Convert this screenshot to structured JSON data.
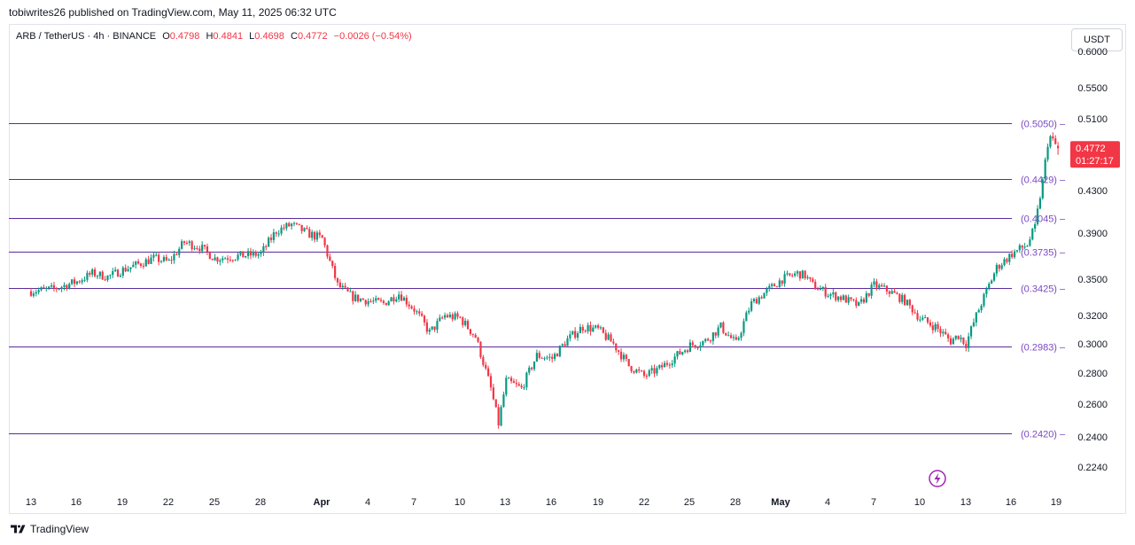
{
  "header": {
    "publish_line": "tobiwrites26 published on TradingView.com, May 11, 2025 06:32 UTC"
  },
  "legend": {
    "symbol": "ARB / TetherUS · 4h · BINANCE",
    "o_label": "O",
    "o_value": "0.4798",
    "h_label": "H",
    "h_value": "0.4841",
    "l_label": "L",
    "l_value": "0.4698",
    "c_label": "C",
    "c_value": "0.4772",
    "change": "−0.0026 (−0.54%)"
  },
  "currency_button": "USDT",
  "brand": {
    "name": "TradingView"
  },
  "colors": {
    "up": "#089981",
    "down": "#f23645",
    "level_line": "#5b2c9e",
    "level_label": "#7b49c2",
    "price_badge": "#f23645",
    "axis_text": "#131722"
  },
  "chart_data": {
    "type": "candlestick",
    "symbol": "ARB / TetherUS",
    "interval": "4h",
    "exchange": "BINANCE",
    "ylim": [
      0.215,
      0.583
    ],
    "y_ticks": [
      "0.2240",
      "0.2400",
      "0.2600",
      "0.2800",
      "0.3000",
      "0.3200",
      "0.3500",
      "0.3900",
      "0.4300",
      "0.5100",
      "0.5500"
    ],
    "y_tick_partial": "0.6000",
    "x_ticks": [
      "13",
      "16",
      "19",
      "22",
      "25",
      "28",
      "Apr",
      "4",
      "7",
      "10",
      "13",
      "16",
      "19",
      "22",
      "25",
      "28",
      "May",
      "4",
      "7",
      "10",
      "13",
      "16",
      "19"
    ],
    "levels": [
      {
        "label": "(0.5050)",
        "value": 0.505
      },
      {
        "label": "(0.4429)",
        "value": 0.4429
      },
      {
        "label": "(0.4045)",
        "value": 0.4045
      },
      {
        "label": "(0.3735)",
        "value": 0.3735
      },
      {
        "label": "(0.3425)",
        "value": 0.3425
      },
      {
        "label": "(0.2983)",
        "value": 0.2983
      },
      {
        "label": "(0.2420)",
        "value": 0.242
      }
    ],
    "last_price": "0.4772",
    "countdown": "01:27:17",
    "ohlc": {
      "open": 0.4798,
      "high": 0.4841,
      "low": 0.4698,
      "close": 0.4772
    },
    "waypoints_day_close": [
      [
        0,
        0.34
      ],
      [
        1.5,
        0.342
      ],
      [
        3,
        0.348
      ],
      [
        4,
        0.355
      ],
      [
        5,
        0.352
      ],
      [
        6,
        0.358
      ],
      [
        8,
        0.368
      ],
      [
        9,
        0.365
      ],
      [
        10,
        0.382
      ],
      [
        11,
        0.378
      ],
      [
        12,
        0.368
      ],
      [
        13.5,
        0.37
      ],
      [
        15,
        0.372
      ],
      [
        16,
        0.392
      ],
      [
        17,
        0.398
      ],
      [
        18,
        0.39
      ],
      [
        19,
        0.385
      ],
      [
        20,
        0.345
      ],
      [
        21,
        0.335
      ],
      [
        22,
        0.332
      ],
      [
        23,
        0.33
      ],
      [
        24,
        0.338
      ],
      [
        25,
        0.325
      ],
      [
        26,
        0.308
      ],
      [
        27,
        0.32
      ],
      [
        28,
        0.318
      ],
      [
        29,
        0.305
      ],
      [
        30,
        0.27
      ],
      [
        30.5,
        0.248
      ],
      [
        31,
        0.275
      ],
      [
        32,
        0.27
      ],
      [
        33,
        0.292
      ],
      [
        34,
        0.29
      ],
      [
        35,
        0.303
      ],
      [
        36,
        0.312
      ],
      [
        37,
        0.31
      ],
      [
        38,
        0.3
      ],
      [
        39,
        0.285
      ],
      [
        40,
        0.278
      ],
      [
        41,
        0.283
      ],
      [
        42,
        0.291
      ],
      [
        43,
        0.299
      ],
      [
        44,
        0.302
      ],
      [
        45,
        0.312
      ],
      [
        46,
        0.3
      ],
      [
        47,
        0.33
      ],
      [
        48,
        0.34
      ],
      [
        49,
        0.35
      ],
      [
        50,
        0.355
      ],
      [
        50.5,
        0.353
      ],
      [
        51,
        0.345
      ],
      [
        52,
        0.338
      ],
      [
        53,
        0.334
      ],
      [
        54,
        0.328
      ],
      [
        55,
        0.345
      ],
      [
        56,
        0.34
      ],
      [
        57,
        0.332
      ],
      [
        58,
        0.318
      ],
      [
        59,
        0.312
      ],
      [
        60,
        0.302
      ],
      [
        60.5,
        0.306
      ],
      [
        61,
        0.3
      ],
      [
        62,
        0.33
      ],
      [
        63,
        0.36
      ],
      [
        64,
        0.372
      ],
      [
        65,
        0.38
      ],
      [
        65.5,
        0.395
      ],
      [
        66,
        0.44
      ],
      [
        66.4,
        0.492
      ],
      [
        66.7,
        0.484
      ],
      [
        67.0,
        0.4772
      ]
    ]
  }
}
